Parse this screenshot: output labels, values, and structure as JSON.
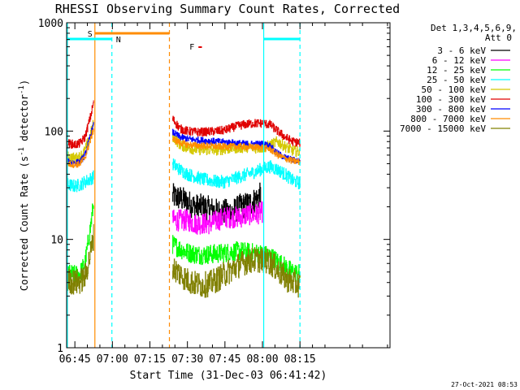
{
  "chart_data": {
    "type": "line",
    "title": "RHESSI Observing Summary Count Rates, Corrected",
    "xlabel": "Start Time (31-Dec-03 06:41:42)",
    "ylabel": "Corrected Count Rate (s",
    "ylabel_sup1": "-1",
    "ylabel_mid": " detector",
    "ylabel_sup2": "-1",
    "ylabel_end": ")",
    "yscale": "log",
    "ylim": [
      1,
      1000
    ],
    "xlim_minutes": [
      41.7,
      171.0
    ],
    "x_ticks": [
      {
        "t": 45,
        "label": "06:45"
      },
      {
        "t": 60,
        "label": "07:00"
      },
      {
        "t": 75,
        "label": "07:15"
      },
      {
        "t": 90,
        "label": "07:30"
      },
      {
        "t": 105,
        "label": "07:45"
      },
      {
        "t": 120,
        "label": "08:00"
      },
      {
        "t": 135,
        "label": "08:15"
      }
    ],
    "y_ticks": [
      {
        "v": 1,
        "label": "1"
      },
      {
        "v": 10,
        "label": "10"
      },
      {
        "v": 100,
        "label": "100"
      },
      {
        "v": 1000,
        "label": "1000"
      }
    ],
    "legend": {
      "placement": "top-right",
      "header": [
        "Det 1,3,4,5,6,9,",
        "Att 0"
      ],
      "entries": [
        {
          "label": "3 - 6 keV",
          "color": "#000000"
        },
        {
          "label": "6 - 12 keV",
          "color": "#ff00ff"
        },
        {
          "label": "12 - 25 keV",
          "color": "#00ff00"
        },
        {
          "label": "25 - 50 keV",
          "color": "#00ffff"
        },
        {
          "label": "50 - 100 keV",
          "color": "#d4c800"
        },
        {
          "label": "100 - 300 keV",
          "color": "#e00000"
        },
        {
          "label": "300 - 800 keV",
          "color": "#0000ff"
        },
        {
          "label": "800 - 7000 keV",
          "color": "#ff8c00"
        },
        {
          "label": "7000 - 15000 keV",
          "color": "#808000"
        }
      ]
    },
    "flag_labels": {
      "saa": "S",
      "night": "N",
      "flare": "F"
    },
    "flags": {
      "saa_bar_minutes": [
        53.0,
        82.8
      ],
      "night_bars_minutes": [
        [
          41.7,
          59.8
        ],
        [
          120.5,
          135.0
        ]
      ],
      "flare_bar_minutes": [
        94.4,
        95.8
      ]
    },
    "event_lines": [
      {
        "t": 42.0,
        "color": "#00ffff",
        "style": "solid"
      },
      {
        "t": 53.0,
        "color": "#ff8c00",
        "style": "solid"
      },
      {
        "t": 59.8,
        "color": "#00ffff",
        "style": "dashed"
      },
      {
        "t": 82.8,
        "color": "#ff8c00",
        "style": "dashed"
      },
      {
        "t": 120.5,
        "color": "#00ffff",
        "style": "solid"
      },
      {
        "t": 135.0,
        "color": "#00ffff",
        "style": "dashed"
      }
    ],
    "segments_minutes": [
      [
        42.0,
        53.0
      ],
      [
        84.0,
        135.0
      ]
    ],
    "series": [
      {
        "name": "3 - 6 keV",
        "color": "#000000",
        "segment1": [],
        "segment2": [
          [
            84,
            25
          ],
          [
            87,
            24
          ],
          [
            90,
            22
          ],
          [
            93,
            20
          ],
          [
            96,
            20
          ],
          [
            99,
            19
          ],
          [
            102,
            18
          ],
          [
            105,
            18
          ],
          [
            108,
            18
          ],
          [
            111,
            20
          ],
          [
            114,
            21
          ],
          [
            117,
            23
          ],
          [
            119.5,
            26
          ]
        ],
        "noise": 0.12
      },
      {
        "name": "6 - 12 keV",
        "color": "#ff00ff",
        "segment1": [],
        "segment2": [
          [
            84,
            15
          ],
          [
            87,
            15
          ],
          [
            90,
            15
          ],
          [
            93,
            14
          ],
          [
            96,
            14
          ],
          [
            99,
            14
          ],
          [
            102,
            15
          ],
          [
            105,
            16
          ],
          [
            108,
            16
          ],
          [
            111,
            16
          ],
          [
            114,
            17
          ],
          [
            117,
            17
          ],
          [
            120,
            18
          ]
        ],
        "noise": 0.1
      },
      {
        "name": "12 - 25 keV",
        "color": "#00ff00",
        "segment1": [
          [
            42,
            4.8
          ],
          [
            45,
            4.7
          ],
          [
            47,
            4.8
          ],
          [
            49,
            6.0
          ],
          [
            51,
            12
          ],
          [
            52.5,
            22
          ]
        ],
        "segment2": [
          [
            84,
            9.0
          ],
          [
            87,
            8.2
          ],
          [
            90,
            7.6
          ],
          [
            93,
            7.3
          ],
          [
            96,
            7.2
          ],
          [
            99,
            7.3
          ],
          [
            102,
            7.4
          ],
          [
            105,
            7.5
          ],
          [
            108,
            7.7
          ],
          [
            111,
            7.8
          ],
          [
            114,
            7.6
          ],
          [
            117,
            7.5
          ],
          [
            120,
            7.3
          ],
          [
            123,
            7.0
          ],
          [
            126,
            6.3
          ],
          [
            129,
            5.6
          ],
          [
            132,
            5.0
          ],
          [
            135,
            4.8
          ]
        ],
        "noise": 0.09
      },
      {
        "name": "25 - 50 keV",
        "color": "#00ffff",
        "segment1": [
          [
            42,
            32
          ],
          [
            45,
            31
          ],
          [
            47,
            32
          ],
          [
            49,
            34
          ],
          [
            51,
            36
          ],
          [
            52.5,
            38
          ]
        ],
        "segment2": [
          [
            84,
            50
          ],
          [
            87,
            44
          ],
          [
            90,
            40
          ],
          [
            93,
            38
          ],
          [
            96,
            36
          ],
          [
            99,
            35
          ],
          [
            102,
            34
          ],
          [
            105,
            34
          ],
          [
            108,
            36
          ],
          [
            111,
            38
          ],
          [
            114,
            40
          ],
          [
            117,
            42
          ],
          [
            120,
            45
          ],
          [
            123,
            47
          ],
          [
            126,
            44
          ],
          [
            129,
            40
          ],
          [
            132,
            35
          ],
          [
            135,
            33
          ]
        ],
        "noise": 0.06
      },
      {
        "name": "50 - 100 keV",
        "color": "#d4c800",
        "segment1": [
          [
            42,
            58
          ],
          [
            45,
            56
          ],
          [
            47,
            58
          ],
          [
            49,
            66
          ],
          [
            51,
            90
          ],
          [
            52.5,
            120
          ]
        ],
        "segment2": [
          [
            84,
            90
          ],
          [
            87,
            75
          ],
          [
            90,
            70
          ],
          [
            93,
            68
          ],
          [
            96,
            67
          ],
          [
            99,
            67
          ],
          [
            102,
            67
          ],
          [
            105,
            68
          ],
          [
            108,
            70
          ],
          [
            111,
            70
          ],
          [
            114,
            71
          ],
          [
            117,
            70
          ],
          [
            120,
            70
          ],
          [
            123,
            74
          ],
          [
            126,
            80
          ],
          [
            129,
            72
          ],
          [
            132,
            66
          ],
          [
            135,
            64
          ]
        ],
        "noise": 0.05
      },
      {
        "name": "100 - 300 keV",
        "color": "#e00000",
        "segment1": [
          [
            42,
            77
          ],
          [
            45,
            75
          ],
          [
            47,
            77
          ],
          [
            49,
            88
          ],
          [
            51,
            130
          ],
          [
            52.5,
            185
          ]
        ],
        "segment2": [
          [
            84,
            130
          ],
          [
            87,
            105
          ],
          [
            90,
            100
          ],
          [
            93,
            98
          ],
          [
            96,
            98
          ],
          [
            99,
            99
          ],
          [
            102,
            100
          ],
          [
            105,
            102
          ],
          [
            108,
            108
          ],
          [
            111,
            113
          ],
          [
            114,
            116
          ],
          [
            117,
            118
          ],
          [
            120,
            118
          ],
          [
            123,
            115
          ],
          [
            126,
            100
          ],
          [
            129,
            88
          ],
          [
            132,
            80
          ],
          [
            135,
            78
          ]
        ],
        "noise": 0.04
      },
      {
        "name": "300 - 800 keV",
        "color": "#0000ff",
        "segment1": [
          [
            42,
            52
          ],
          [
            45,
            51
          ],
          [
            47,
            52
          ],
          [
            49,
            60
          ],
          [
            51,
            88
          ],
          [
            52.5,
            115
          ]
        ],
        "segment2": [
          [
            84,
            98
          ],
          [
            87,
            88
          ],
          [
            90,
            85
          ],
          [
            93,
            83
          ],
          [
            96,
            82
          ],
          [
            99,
            81
          ],
          [
            102,
            80
          ],
          [
            105,
            79
          ],
          [
            108,
            78
          ],
          [
            111,
            77
          ],
          [
            114,
            76
          ],
          [
            117,
            76
          ],
          [
            120,
            76
          ],
          [
            123,
            73
          ],
          [
            126,
            62
          ],
          [
            129,
            57
          ],
          [
            132,
            54
          ],
          [
            135,
            53
          ]
        ],
        "noise": 0.03
      },
      {
        "name": "800 - 7000 keV",
        "color": "#ff8c00",
        "segment1": [
          [
            42,
            50
          ],
          [
            45,
            49
          ],
          [
            47,
            50
          ],
          [
            49,
            57
          ],
          [
            51,
            80
          ],
          [
            52.5,
            105
          ]
        ],
        "segment2": [
          [
            84,
            85
          ],
          [
            87,
            78
          ],
          [
            90,
            75
          ],
          [
            93,
            74
          ],
          [
            96,
            73
          ],
          [
            99,
            73
          ],
          [
            102,
            72
          ],
          [
            105,
            72
          ],
          [
            108,
            72
          ],
          [
            111,
            72
          ],
          [
            114,
            71
          ],
          [
            117,
            71
          ],
          [
            120,
            71
          ],
          [
            123,
            68
          ],
          [
            126,
            60
          ],
          [
            129,
            56
          ],
          [
            132,
            53
          ],
          [
            135,
            52
          ]
        ],
        "noise": 0.03
      },
      {
        "name": "7000 - 15000 keV",
        "color": "#808000",
        "segment1": [
          [
            42,
            4.2
          ],
          [
            45,
            4.0
          ],
          [
            47,
            4.1
          ],
          [
            49,
            4.5
          ],
          [
            51,
            7.0
          ],
          [
            52.5,
            11
          ]
        ],
        "segment2": [
          [
            84,
            5.5
          ],
          [
            87,
            4.8
          ],
          [
            90,
            4.2
          ],
          [
            93,
            3.9
          ],
          [
            96,
            3.8
          ],
          [
            99,
            3.9
          ],
          [
            102,
            4.3
          ],
          [
            105,
            4.8
          ],
          [
            108,
            5.3
          ],
          [
            111,
            5.9
          ],
          [
            114,
            6.3
          ],
          [
            117,
            6.5
          ],
          [
            120,
            6.5
          ],
          [
            123,
            6.2
          ],
          [
            126,
            5.2
          ],
          [
            129,
            4.4
          ],
          [
            132,
            4.0
          ],
          [
            135,
            3.8
          ]
        ],
        "noise": 0.12
      }
    ],
    "footer_timestamp": "27-Oct-2021 08:53"
  }
}
